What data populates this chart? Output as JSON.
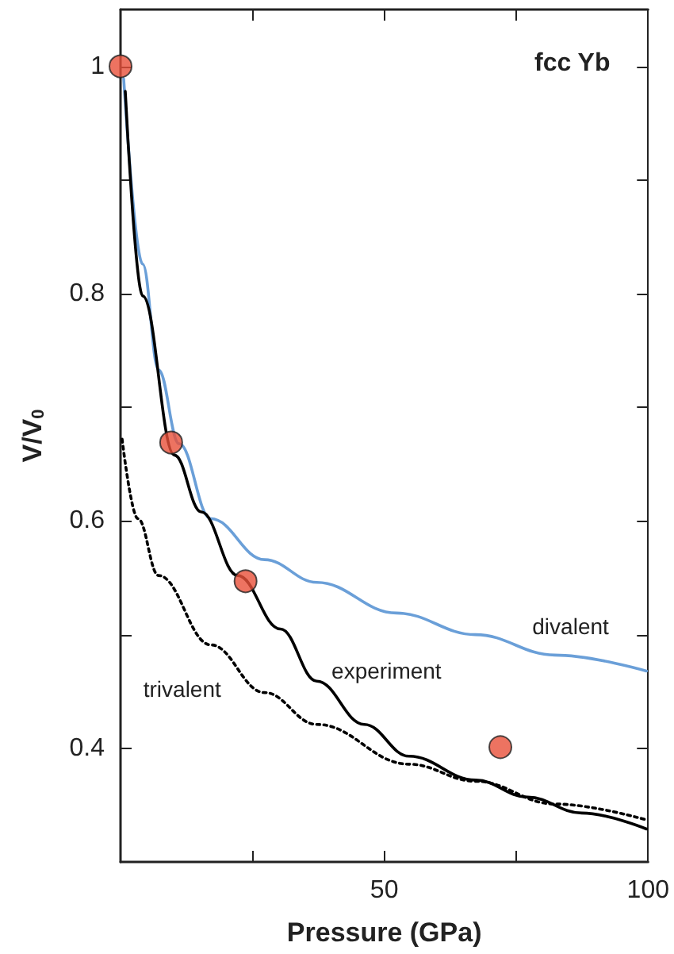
{
  "chart_data": {
    "type": "line",
    "xlabel": "Pressure (GPa)",
    "ylabel": "V/V$_{0}$",
    "annotations": [
      "fcc Yb"
    ],
    "xlim": [
      0,
      100
    ],
    "xticks": [
      {
        "value": 25,
        "label": null
      },
      50,
      {
        "value": 75,
        "label": null
      },
      100
    ],
    "ylim": [
      0.3,
      1.05
    ],
    "yticks": [
      0.4,
      {
        "value": 0.5,
        "label": null
      },
      0.6,
      {
        "value": 0.7,
        "label": null
      },
      0.8,
      {
        "value": 0.9,
        "label": null
      },
      {
        "value": 1,
        "label": "1"
      }
    ],
    "grid": false,
    "legend": false,
    "marker": "none",
    "series": [
      {
        "name": "divalent",
        "color": "#6a9fd8",
        "line_style": "solid",
        "x": [
          0.6,
          4.2,
          7.2,
          11.1,
          17.1,
          27.3,
          37.2,
          52.3,
          67.3,
          82.3,
          99.7
        ],
        "values": [
          0.989,
          0.826,
          0.733,
          0.668,
          0.602,
          0.566,
          0.546,
          0.519,
          0.5,
          0.482,
          0.468
        ]
      },
      {
        "name": "experiment",
        "color": "#000000",
        "line_style": "solid",
        "x": [
          0.9,
          4.2,
          10.2,
          15.3,
          22.2,
          30.3,
          37.2,
          46.2,
          54.7,
          67.3,
          77.2,
          87.4,
          99.7
        ],
        "values": [
          0.978,
          0.798,
          0.658,
          0.608,
          0.552,
          0.505,
          0.459,
          0.421,
          0.393,
          0.372,
          0.357,
          0.343,
          0.329
        ]
      },
      {
        "name": "trivalent",
        "color": "#000000",
        "line_style": "dotted",
        "x": [
          0.3,
          3.3,
          7.2,
          17.1,
          27.3,
          37.2,
          54.7,
          67.3,
          82.3,
          99.7
        ],
        "values": [
          0.672,
          0.602,
          0.552,
          0.491,
          0.449,
          0.421,
          0.386,
          0.371,
          0.351,
          0.337
        ]
      },
      {
        "type": "scatter",
        "marker": "circle",
        "color": "#e8503a",
        "x": [
          0,
          9.6,
          23.7,
          72
        ],
        "values": [
          1,
          0.669,
          0.547,
          0.401
        ]
      }
    ]
  }
}
